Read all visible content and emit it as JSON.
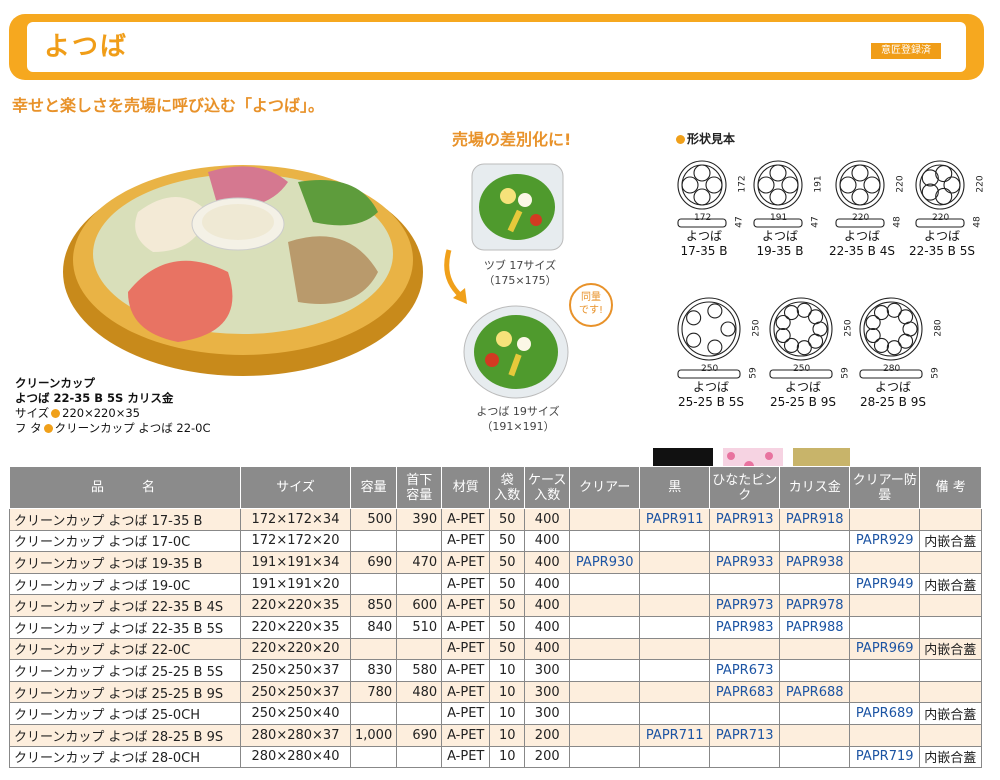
{
  "header": {
    "title": "よつば",
    "badge": "意匠登録済"
  },
  "tagline": "幸せと楽しさを売場に呼び込む「よつば」。",
  "photo_caption": {
    "line1": "クリーンカップ",
    "line2": "よつば 22-35 B 5S カリス金",
    "line3_label": "サイズ",
    "line3_value": "220×220×35",
    "line4_label": "フ タ",
    "line4_value": "クリーンカップ よつば 22-0C"
  },
  "promo": {
    "heading": "売場の差別化に!",
    "item1_name": "ツブ 17サイズ",
    "item1_dims": "（175×175）",
    "item2_name": "よつば 19サイズ",
    "item2_dims": "（191×191）",
    "same_amount": "同量\nです!"
  },
  "shapes": {
    "title": "形状見本",
    "items": [
      {
        "name": "よつば",
        "code": "17-35 B",
        "w": "172",
        "h": "172",
        "d": "47"
      },
      {
        "name": "よつば",
        "code": "19-35 B",
        "w": "191",
        "h": "191",
        "d": "47"
      },
      {
        "name": "よつば",
        "code": "22-35 B 4S",
        "w": "220",
        "h": "220",
        "d": "48"
      },
      {
        "name": "よつば",
        "code": "22-35 B 5S",
        "w": "220",
        "h": "220",
        "d": "48"
      },
      {
        "name": "よつば",
        "code": "25-25 B 5S",
        "w": "250",
        "h": "250",
        "d": "59"
      },
      {
        "name": "よつば",
        "code": "25-25 B 9S",
        "w": "250",
        "h": "250",
        "d": "59"
      },
      {
        "name": "よつば",
        "code": "28-25 B 9S",
        "w": "280",
        "h": "280",
        "d": "59"
      }
    ]
  },
  "table": {
    "headers": {
      "name": "品　　名",
      "size": "サイズ",
      "capacity": "容量",
      "neck": "首下\n容量",
      "material": "材質",
      "bag": "袋\n入数",
      "case": "ケース\n入数",
      "clear": "クリアー",
      "black": "黒",
      "pink": "ひなたピンク",
      "gold": "カリス金",
      "clear_anti": "クリアー防曇",
      "note": "備 考"
    },
    "colors": {
      "black": "#111111",
      "pink": "#f6d3e2",
      "gold": "#c8b46a",
      "header": "#8b8b8b",
      "row": "#fdeedd"
    },
    "rows": [
      [
        "クリーンカップ よつば 17-35 B",
        "172×172×34",
        "500",
        "390",
        "A-PET",
        "50",
        "400",
        "",
        "PAPR911",
        "PAPR913",
        "PAPR918",
        "",
        ""
      ],
      [
        "クリーンカップ よつば 17-0C",
        "172×172×20",
        "",
        "",
        "A-PET",
        "50",
        "400",
        "",
        "",
        "",
        "",
        "PAPR929",
        "内嵌合蓋"
      ],
      [
        "クリーンカップ よつば 19-35 B",
        "191×191×34",
        "690",
        "470",
        "A-PET",
        "50",
        "400",
        "PAPR930",
        "",
        "PAPR933",
        "PAPR938",
        "",
        ""
      ],
      [
        "クリーンカップ よつば 19-0C",
        "191×191×20",
        "",
        "",
        "A-PET",
        "50",
        "400",
        "",
        "",
        "",
        "",
        "PAPR949",
        "内嵌合蓋"
      ],
      [
        "クリーンカップ よつば 22-35 B 4S",
        "220×220×35",
        "850",
        "600",
        "A-PET",
        "50",
        "400",
        "",
        "",
        "PAPR973",
        "PAPR978",
        "",
        ""
      ],
      [
        "クリーンカップ よつば 22-35 B 5S",
        "220×220×35",
        "840",
        "510",
        "A-PET",
        "50",
        "400",
        "",
        "",
        "PAPR983",
        "PAPR988",
        "",
        ""
      ],
      [
        "クリーンカップ よつば 22-0C",
        "220×220×20",
        "",
        "",
        "A-PET",
        "50",
        "400",
        "",
        "",
        "",
        "",
        "PAPR969",
        "内嵌合蓋"
      ],
      [
        "クリーンカップ よつば 25-25 B 5S",
        "250×250×37",
        "830",
        "580",
        "A-PET",
        "10",
        "300",
        "",
        "",
        "PAPR673",
        "",
        "",
        ""
      ],
      [
        "クリーンカップ よつば 25-25 B 9S",
        "250×250×37",
        "780",
        "480",
        "A-PET",
        "10",
        "300",
        "",
        "",
        "PAPR683",
        "PAPR688",
        "",
        ""
      ],
      [
        "クリーンカップ よつば 25-0CH",
        "250×250×40",
        "",
        "",
        "A-PET",
        "10",
        "300",
        "",
        "",
        "",
        "",
        "PAPR689",
        "内嵌合蓋"
      ],
      [
        "クリーンカップ よつば 28-25 B 9S",
        "280×280×37",
        "1,000",
        "690",
        "A-PET",
        "10",
        "200",
        "",
        "PAPR711",
        "PAPR713",
        "",
        "",
        ""
      ],
      [
        "クリーンカップ よつば 28-0CH",
        "280×280×40",
        "",
        "",
        "A-PET",
        "10",
        "200",
        "",
        "",
        "",
        "",
        "PAPR719",
        "内嵌合蓋"
      ]
    ]
  }
}
